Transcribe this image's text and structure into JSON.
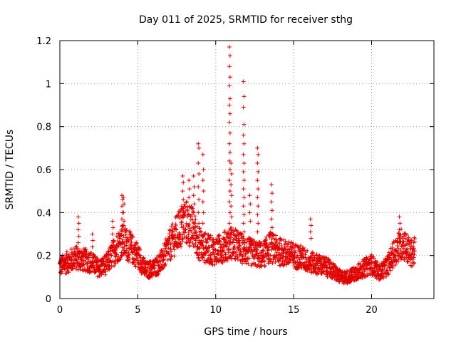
{
  "chart_data": {
    "type": "scatter",
    "title": "Day 011 of 2025, SRMTID for receiver sthg",
    "xlabel": "GPS time / hours",
    "ylabel": "SRMTID / TECUs",
    "xlim": [
      0,
      24
    ],
    "ylim": [
      0,
      1.2
    ],
    "xticks": [
      0,
      5,
      10,
      15,
      20
    ],
    "xtick_labels": [
      "0",
      "5",
      "10",
      "15",
      "20"
    ],
    "yticks": [
      0,
      0.2,
      0.4,
      0.6,
      0.8,
      1.0,
      1.2
    ],
    "ytick_labels": [
      "0",
      "0.2",
      "0.4",
      "0.6",
      "0.8",
      "1",
      "1.2"
    ],
    "grid": true,
    "marker": "+",
    "color": "#e00000",
    "baseline": [
      [
        0.0,
        0.15
      ],
      [
        0.5,
        0.17
      ],
      [
        1.0,
        0.19
      ],
      [
        1.5,
        0.18
      ],
      [
        2.0,
        0.17
      ],
      [
        2.5,
        0.14
      ],
      [
        3.0,
        0.16
      ],
      [
        3.5,
        0.22
      ],
      [
        4.0,
        0.27
      ],
      [
        4.5,
        0.24
      ],
      [
        5.0,
        0.2
      ],
      [
        5.5,
        0.13
      ],
      [
        6.0,
        0.14
      ],
      [
        6.5,
        0.17
      ],
      [
        7.0,
        0.24
      ],
      [
        7.5,
        0.3
      ],
      [
        8.0,
        0.36
      ],
      [
        8.5,
        0.33
      ],
      [
        9.0,
        0.25
      ],
      [
        9.5,
        0.23
      ],
      [
        10.0,
        0.22
      ],
      [
        10.5,
        0.24
      ],
      [
        11.0,
        0.26
      ],
      [
        11.5,
        0.24
      ],
      [
        12.0,
        0.22
      ],
      [
        12.5,
        0.21
      ],
      [
        13.0,
        0.2
      ],
      [
        13.5,
        0.24
      ],
      [
        14.0,
        0.22
      ],
      [
        14.5,
        0.21
      ],
      [
        15.0,
        0.2
      ],
      [
        15.5,
        0.19
      ],
      [
        16.0,
        0.17
      ],
      [
        16.5,
        0.16
      ],
      [
        17.0,
        0.15
      ],
      [
        17.5,
        0.13
      ],
      [
        18.0,
        0.1
      ],
      [
        18.5,
        0.1
      ],
      [
        19.0,
        0.12
      ],
      [
        19.5,
        0.14
      ],
      [
        20.0,
        0.16
      ],
      [
        20.5,
        0.12
      ],
      [
        21.0,
        0.15
      ],
      [
        21.5,
        0.22
      ],
      [
        22.0,
        0.26
      ],
      [
        22.5,
        0.21
      ],
      [
        22.8,
        0.22
      ]
    ],
    "spikes": [
      {
        "x": 1.2,
        "values": [
          0.38,
          0.35,
          0.32,
          0.29,
          0.26
        ]
      },
      {
        "x": 2.1,
        "values": [
          0.3,
          0.27,
          0.24
        ]
      },
      {
        "x": 3.4,
        "values": [
          0.36,
          0.33,
          0.3,
          0.27
        ]
      },
      {
        "x": 4.0,
        "values": [
          0.48,
          0.46,
          0.43,
          0.4,
          0.37,
          0.34,
          0.31
        ]
      },
      {
        "x": 4.1,
        "values": [
          0.47,
          0.44,
          0.4,
          0.36
        ]
      },
      {
        "x": 7.9,
        "values": [
          0.57,
          0.54,
          0.5,
          0.46,
          0.42,
          0.38
        ]
      },
      {
        "x": 8.3,
        "values": [
          0.55,
          0.51,
          0.47,
          0.43,
          0.39
        ]
      },
      {
        "x": 8.6,
        "values": [
          0.57,
          0.52,
          0.48,
          0.44,
          0.4
        ]
      },
      {
        "x": 8.9,
        "values": [
          0.72,
          0.7,
          0.63,
          0.58,
          0.52,
          0.46,
          0.4,
          0.35
        ]
      },
      {
        "x": 9.2,
        "values": [
          0.67,
          0.6,
          0.55,
          0.5,
          0.45,
          0.4,
          0.35
        ]
      },
      {
        "x": 10.9,
        "values": [
          1.17,
          1.13,
          1.08,
          1.03,
          0.99,
          0.93,
          0.9,
          0.86,
          0.82,
          0.77,
          0.72,
          0.68,
          0.64,
          0.6,
          0.55,
          0.5,
          0.45,
          0.4,
          0.35,
          0.3
        ]
      },
      {
        "x": 11.0,
        "values": [
          0.63,
          0.58,
          0.53,
          0.48,
          0.43,
          0.38
        ]
      },
      {
        "x": 11.8,
        "values": [
          1.01,
          0.94,
          0.89,
          0.81,
          0.76,
          0.72,
          0.67,
          0.63,
          0.59,
          0.55,
          0.51,
          0.47,
          0.43,
          0.39,
          0.35,
          0.31
        ]
      },
      {
        "x": 12.2,
        "values": [
          0.48,
          0.44,
          0.4,
          0.36
        ]
      },
      {
        "x": 12.7,
        "values": [
          0.7,
          0.67,
          0.63,
          0.59,
          0.55,
          0.51,
          0.47,
          0.43,
          0.39,
          0.35,
          0.31
        ]
      },
      {
        "x": 13.6,
        "values": [
          0.53,
          0.49,
          0.45,
          0.41,
          0.37,
          0.33
        ]
      },
      {
        "x": 16.1,
        "values": [
          0.37,
          0.34,
          0.31,
          0.28
        ]
      },
      {
        "x": 21.8,
        "values": [
          0.38,
          0.35,
          0.32,
          0.29
        ]
      }
    ]
  }
}
